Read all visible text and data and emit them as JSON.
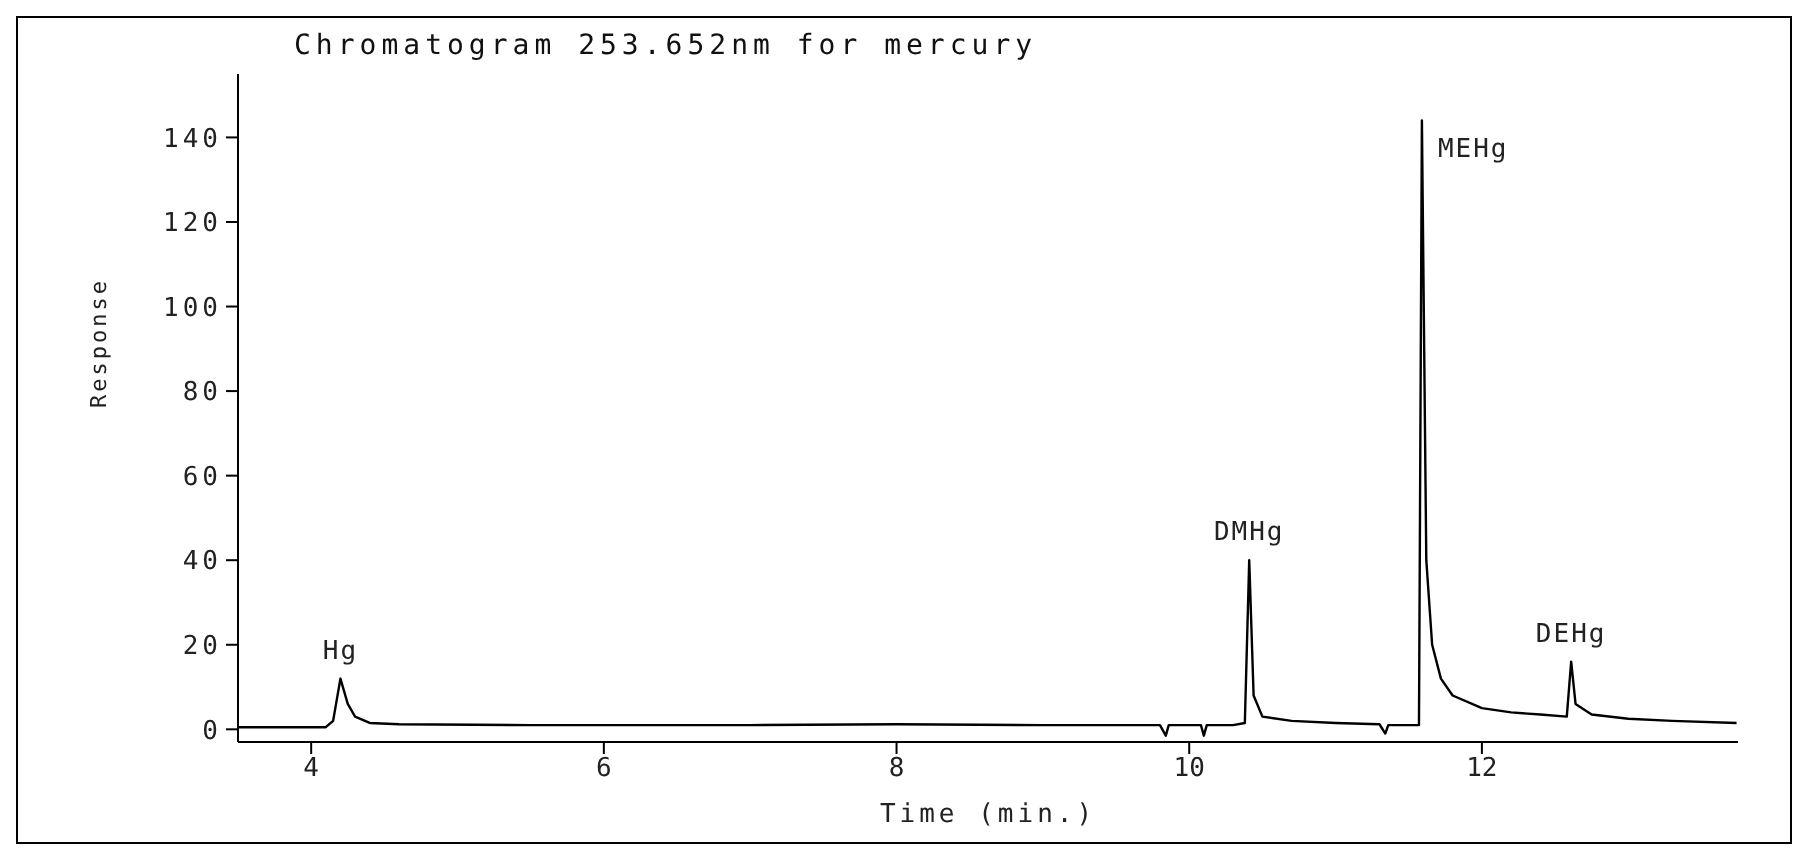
{
  "chart_data": {
    "type": "line",
    "title": "Chromatogram 253.652nm for mercury",
    "xlabel": "Time (min.)",
    "ylabel": "Response",
    "x": [
      3.5,
      4.1,
      4.15,
      4.2,
      4.25,
      4.3,
      4.4,
      4.6,
      5.5,
      7,
      8,
      9,
      9.8,
      9.84,
      9.86,
      10.08,
      10.1,
      10.12,
      10.3,
      10.38,
      10.41,
      10.44,
      10.5,
      10.7,
      11,
      11.3,
      11.34,
      11.36,
      11.57,
      11.59,
      11.62,
      11.66,
      11.72,
      11.8,
      12,
      12.2,
      12.4,
      12.58,
      12.61,
      12.64,
      12.75,
      13,
      13.3,
      13.74
    ],
    "series": [
      {
        "color": "#000000",
        "values": [
          0.5,
          0.5,
          2,
          12,
          6,
          3,
          1.5,
          1.2,
          1,
          1,
          1.2,
          1,
          1,
          -1.5,
          1,
          1,
          -1.5,
          1,
          1,
          1.5,
          40,
          8,
          3,
          2,
          1.5,
          1.2,
          -1,
          1,
          1,
          144,
          40,
          20,
          12,
          8,
          5,
          4,
          3.5,
          3,
          16,
          6,
          3.5,
          2.5,
          2,
          1.5
        ]
      }
    ],
    "xlim": [
      3.5,
      13.75
    ],
    "xticks": [
      4,
      6,
      8,
      10,
      12
    ],
    "ylim": [
      -3,
      155
    ],
    "yticks": [
      0,
      20,
      40,
      60,
      80,
      100,
      120,
      140
    ],
    "annotations": [
      {
        "text": "Hg",
        "x": 4.2,
        "y": 12
      },
      {
        "text": "DMHg",
        "x": 10.41,
        "y": 40
      },
      {
        "text": "MEHg",
        "x": 11.59,
        "y": 144
      },
      {
        "text": "DEHg",
        "x": 12.61,
        "y": 16
      }
    ],
    "grid": false,
    "legend": false,
    "marker": "none",
    "line_style": "solid"
  }
}
